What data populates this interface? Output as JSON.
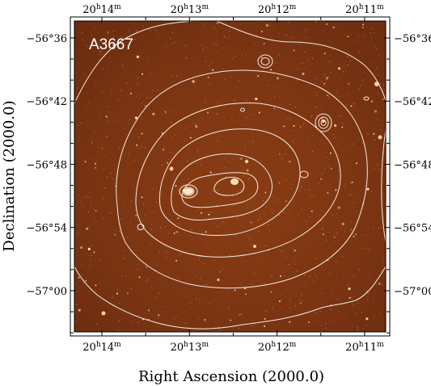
{
  "figure": {
    "field_label": "A3667",
    "xlabel": "Right Ascension (2000.0)",
    "ylabel": "Declination (2000.0)",
    "ra_ticks": [
      {
        "h": "20",
        "m": "14",
        "ra_min": 14
      },
      {
        "h": "20",
        "m": "13",
        "ra_min": 13
      },
      {
        "h": "20",
        "m": "12",
        "ra_min": 12
      },
      {
        "h": "20",
        "m": "11",
        "ra_min": 11
      }
    ],
    "dec_ticks": [
      {
        "label": "−56°36",
        "dec_arcmin": -36
      },
      {
        "label": "−56°42",
        "dec_arcmin": -42
      },
      {
        "label": "−56°48",
        "dec_arcmin": -48
      },
      {
        "label": "−56°54",
        "dec_arcmin": -54
      },
      {
        "label": "−57°00",
        "dec_arcmin": -60
      }
    ],
    "colors": {
      "image_background": "#7a3412",
      "contour": "#f3ece4",
      "frame": "#000000"
    }
  }
}
